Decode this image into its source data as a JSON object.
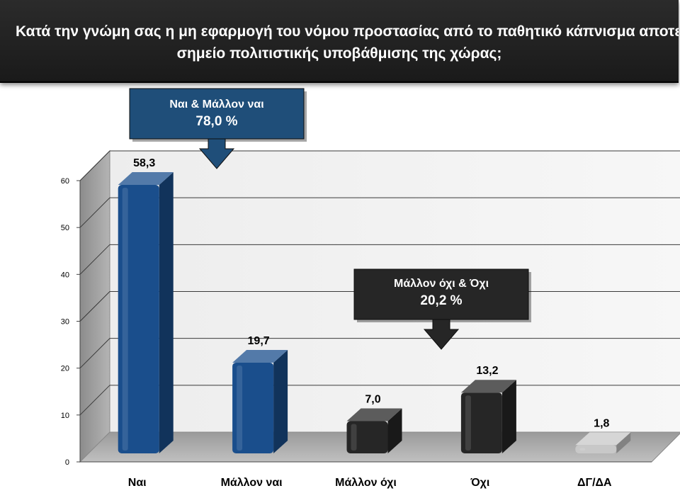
{
  "title": {
    "line1": "Κατά την γνώμη σας η μη εφαρμογή του νόμου προστασίας από το παθητικό κάπνισμα αποτελεί",
    "line2": "σημείο πολιτιστικής υποβάθμισης της χώρας;"
  },
  "callouts": [
    {
      "label": "Ναι & Μάλλον ναι",
      "value": "78,0 %",
      "color": "#1f4e79"
    },
    {
      "label": "Μάλλον όχι & Όχι",
      "value": "20,2 %",
      "color": "#262626"
    }
  ],
  "chart_data": {
    "type": "bar",
    "categories": [
      "Ναι",
      "Μάλλον ναι",
      "Μάλλον όχι",
      "Όχι",
      "ΔΓ/ΔΑ"
    ],
    "values": [
      58.3,
      19.7,
      7.0,
      13.2,
      1.8
    ],
    "value_labels": [
      "58,3",
      "19,7",
      "7,0",
      "13,2",
      "1,8"
    ],
    "colors": [
      "#1a4e8c",
      "#1a4e8c",
      "#262626",
      "#262626",
      "#c8c8c8"
    ],
    "ylim": [
      0,
      60
    ],
    "yticks": [
      "0",
      "10",
      "20",
      "30",
      "40",
      "50",
      "60"
    ],
    "grid": true,
    "legend": "none",
    "style": "3d"
  }
}
